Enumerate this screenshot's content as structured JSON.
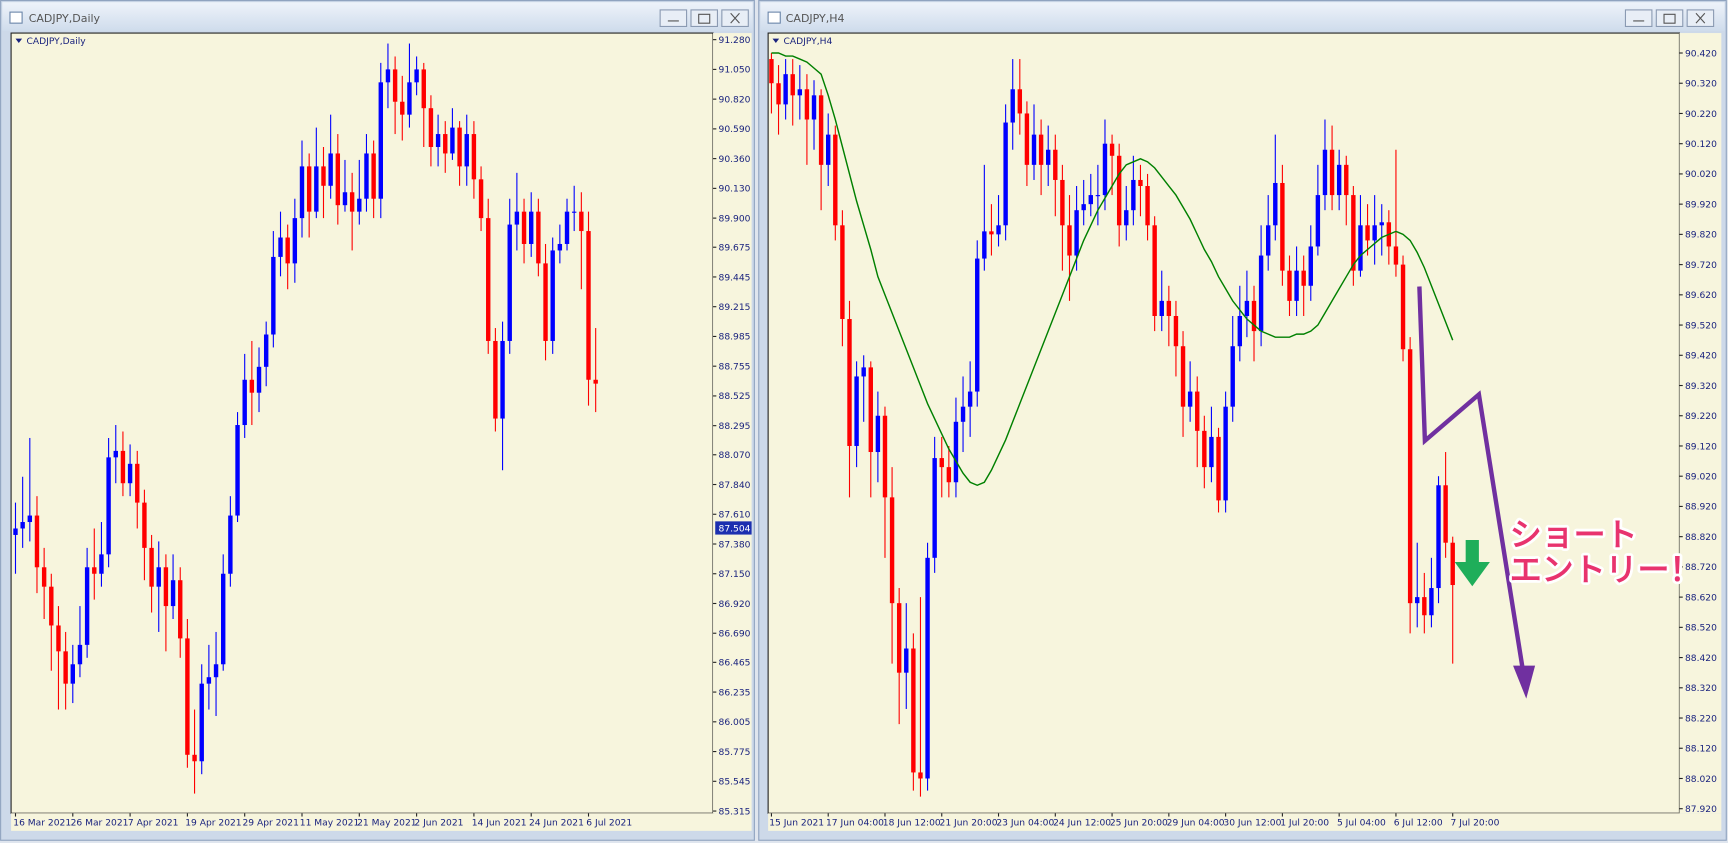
{
  "chart_data": [
    {
      "type": "candlestick",
      "window_title": "CADJPY,Daily",
      "label": "CADJPY,Daily",
      "up_color": "#0000ff",
      "down_color": "#ff0000",
      "ylim": [
        85.298,
        91.331
      ],
      "yticks": [
        {
          "value": 91.28,
          "label": "91.280"
        },
        {
          "value": 91.05,
          "label": "91.050"
        },
        {
          "value": 90.82,
          "label": "90.820"
        },
        {
          "value": 90.59,
          "label": "90.590"
        },
        {
          "value": 90.36,
          "label": "90.360"
        },
        {
          "value": 90.13,
          "label": "90.130"
        },
        {
          "value": 89.9,
          "label": "89.900"
        },
        89.675,
        89.445,
        89.215,
        88.985,
        88.755,
        88.525,
        88.295,
        {
          "value": 88.07,
          "label": "88.070"
        },
        {
          "value": 87.84,
          "label": "87.840"
        },
        {
          "value": 87.61,
          "label": "87.610"
        },
        {
          "value": 87.38,
          "label": "87.380"
        },
        {
          "value": 87.15,
          "label": "87.150"
        },
        {
          "value": 86.92,
          "label": "86.920"
        },
        {
          "value": 86.69,
          "label": "86.690"
        },
        86.465,
        86.235,
        86.005,
        85.775,
        85.545,
        85.315
      ],
      "bid": 87.504,
      "categories": [
        "16 Mar 2021",
        null,
        null,
        null,
        null,
        null,
        null,
        null,
        "26 Mar 2021",
        null,
        null,
        null,
        null,
        null,
        null,
        null,
        "7 Apr 2021",
        null,
        null,
        null,
        null,
        null,
        null,
        null,
        "19 Apr 2021",
        null,
        null,
        null,
        null,
        null,
        null,
        null,
        "29 Apr 2021",
        null,
        null,
        null,
        null,
        null,
        null,
        null,
        "11 May 2021",
        null,
        null,
        null,
        null,
        null,
        null,
        null,
        "21 May 2021",
        null,
        null,
        null,
        null,
        null,
        null,
        null,
        "2 Jun 2021",
        null,
        null,
        null,
        null,
        null,
        null,
        null,
        "14 Jun 2021",
        null,
        null,
        null,
        null,
        null,
        null,
        null,
        "24 Jun 2021",
        null,
        null,
        null,
        null,
        null,
        null,
        null,
        "6 Jul 2021",
        null
      ],
      "open": [
        87.45,
        87.5,
        87.55,
        87.6,
        87.2,
        87.05,
        86.75,
        86.55,
        86.3,
        86.45,
        86.6,
        87.2,
        87.15,
        87.3,
        88.05,
        88.1,
        87.85,
        88.0,
        87.7,
        87.35,
        87.05,
        87.2,
        86.9,
        87.1,
        86.65,
        85.75,
        85.7,
        86.3,
        86.35,
        86.45,
        87.15,
        87.6,
        88.3,
        88.65,
        88.55,
        88.75,
        89.0,
        89.6,
        89.75,
        89.55,
        89.9,
        90.3,
        89.95,
        90.3,
        90.15,
        90.4,
        90.0,
        90.1,
        89.95,
        90.05,
        90.4,
        90.05,
        90.95,
        91.05,
        90.8,
        90.7,
        90.95,
        91.05,
        90.75,
        90.45,
        90.55,
        90.4,
        90.6,
        90.3,
        90.55,
        90.2,
        89.9,
        88.95,
        88.35,
        88.95,
        89.85,
        89.95,
        89.7,
        89.95,
        89.55,
        88.95,
        89.65,
        89.7,
        89.95,
        89.95,
        89.8,
        88.65
      ],
      "high": [
        87.7,
        87.9,
        88.2,
        87.75,
        87.35,
        87.15,
        86.9,
        86.7,
        86.6,
        86.9,
        87.35,
        87.5,
        87.55,
        88.2,
        88.3,
        88.25,
        88.15,
        88.1,
        87.8,
        87.45,
        87.4,
        87.3,
        87.3,
        87.2,
        86.8,
        86.1,
        86.45,
        86.6,
        86.7,
        87.3,
        87.75,
        88.4,
        88.85,
        88.95,
        88.9,
        89.1,
        89.8,
        89.95,
        89.85,
        90.05,
        90.5,
        90.4,
        90.6,
        90.45,
        90.7,
        90.55,
        90.35,
        90.25,
        90.35,
        90.55,
        90.5,
        91.1,
        91.25,
        91.15,
        91.0,
        91.25,
        91.15,
        91.1,
        90.85,
        90.7,
        90.65,
        90.75,
        90.65,
        90.7,
        90.65,
        90.3,
        90.05,
        89.05,
        89.1,
        90.05,
        90.25,
        90.05,
        90.1,
        90.05,
        89.7,
        89.75,
        89.85,
        90.05,
        90.15,
        90.1,
        89.95,
        89.05
      ],
      "low": [
        87.15,
        87.35,
        87.4,
        87.0,
        86.8,
        86.4,
        86.1,
        86.1,
        86.15,
        86.35,
        86.5,
        86.95,
        87.05,
        87.2,
        87.85,
        87.75,
        87.75,
        87.5,
        87.1,
        86.85,
        86.7,
        86.55,
        86.8,
        86.5,
        85.65,
        85.45,
        85.6,
        86.1,
        86.05,
        86.4,
        87.05,
        87.55,
        88.2,
        88.3,
        88.4,
        88.6,
        88.9,
        89.45,
        89.35,
        89.4,
        89.75,
        89.75,
        89.9,
        89.9,
        90.05,
        89.85,
        89.95,
        89.65,
        89.85,
        89.95,
        89.9,
        89.9,
        90.75,
        90.55,
        90.5,
        90.6,
        90.85,
        90.45,
        90.3,
        90.3,
        90.25,
        90.35,
        90.15,
        90.15,
        90.05,
        89.8,
        88.85,
        88.25,
        87.95,
        88.85,
        89.65,
        89.55,
        89.6,
        89.45,
        88.8,
        88.85,
        89.55,
        89.65,
        89.8,
        89.35,
        88.45,
        88.4
      ],
      "close": [
        87.5,
        87.55,
        87.6,
        87.2,
        87.05,
        86.75,
        86.55,
        86.3,
        86.45,
        86.6,
        87.2,
        87.15,
        87.3,
        88.05,
        88.1,
        87.85,
        88.0,
        87.7,
        87.35,
        87.05,
        87.2,
        86.9,
        87.1,
        86.65,
        85.75,
        85.7,
        86.3,
        86.35,
        86.45,
        87.15,
        87.6,
        88.3,
        88.65,
        88.55,
        88.75,
        89.0,
        89.6,
        89.75,
        89.55,
        89.9,
        90.3,
        89.95,
        90.3,
        90.15,
        90.4,
        90.0,
        90.1,
        89.95,
        90.05,
        90.4,
        90.05,
        90.95,
        91.05,
        90.8,
        90.7,
        90.95,
        91.05,
        90.75,
        90.45,
        90.55,
        90.4,
        90.6,
        90.3,
        90.55,
        90.2,
        89.9,
        88.95,
        88.35,
        88.95,
        89.85,
        89.95,
        89.7,
        89.95,
        89.55,
        88.95,
        89.65,
        89.7,
        89.95,
        89.95,
        89.8,
        88.65,
        88.62
      ]
    },
    {
      "type": "candlestick",
      "window_title": "CADJPY,H4",
      "label": "CADJPY,H4",
      "up_color": "#0000ff",
      "down_color": "#ff0000",
      "ylim": [
        87.905,
        90.486
      ],
      "yticks": [
        {
          "value": 90.42,
          "label": "90.420"
        },
        {
          "value": 90.32,
          "label": "90.320"
        },
        {
          "value": 90.22,
          "label": "90.220"
        },
        {
          "value": 90.12,
          "label": "90.120"
        },
        {
          "value": 90.02,
          "label": "90.020"
        },
        {
          "value": 89.92,
          "label": "89.920"
        },
        {
          "value": 89.82,
          "label": "89.820"
        },
        {
          "value": 89.72,
          "label": "89.720"
        },
        {
          "value": 89.62,
          "label": "89.620"
        },
        {
          "value": 89.52,
          "label": "89.520"
        },
        {
          "value": 89.42,
          "label": "89.420"
        },
        {
          "value": 89.32,
          "label": "89.320"
        },
        {
          "value": 89.22,
          "label": "89.220"
        },
        {
          "value": 89.12,
          "label": "89.120"
        },
        {
          "value": 89.02,
          "label": "89.020"
        },
        {
          "value": 88.92,
          "label": "88.920"
        },
        {
          "value": 88.82,
          "label": "88.820"
        },
        {
          "value": 88.72,
          "label": "88.720"
        },
        {
          "value": 88.62,
          "label": "88.620"
        },
        {
          "value": 88.52,
          "label": "88.520"
        },
        {
          "value": 88.42,
          "label": "88.420"
        },
        {
          "value": 88.32,
          "label": "88.320"
        },
        {
          "value": 88.22,
          "label": "88.220"
        },
        {
          "value": 88.12,
          "label": "88.120"
        },
        {
          "value": 88.02,
          "label": "88.020"
        },
        {
          "value": 87.92,
          "label": "87.920"
        }
      ],
      "categories": [
        "15 Jun 2021",
        null,
        null,
        null,
        null,
        null,
        null,
        null,
        "17 Jun 04:00",
        null,
        null,
        null,
        null,
        null,
        null,
        null,
        "18 Jun 12:00",
        null,
        null,
        null,
        null,
        null,
        null,
        null,
        "21 Jun 20:00",
        null,
        null,
        null,
        null,
        null,
        null,
        null,
        "23 Jun 04:00",
        null,
        null,
        null,
        null,
        null,
        null,
        null,
        "24 Jun 12:00",
        null,
        null,
        null,
        null,
        null,
        null,
        null,
        "25 Jun 20:00",
        null,
        null,
        null,
        null,
        null,
        null,
        null,
        "29 Jun 04:00",
        null,
        null,
        null,
        null,
        null,
        null,
        null,
        "30 Jun 12:00",
        null,
        null,
        null,
        null,
        null,
        null,
        null,
        "1 Jul 20:00",
        null,
        null,
        null,
        null,
        null,
        null,
        null,
        "5 Jul 04:00",
        null,
        null,
        null,
        null,
        null,
        null,
        null,
        "6 Jul 12:00",
        null,
        null,
        null,
        null,
        null,
        null,
        null,
        "7 Jul 20:00"
      ],
      "open": [
        90.4,
        90.32,
        90.25,
        90.35,
        90.28,
        90.3,
        90.2,
        90.28,
        90.05,
        90.15,
        89.85,
        89.54,
        89.12,
        89.35,
        89.38,
        89.1,
        89.22,
        88.95,
        88.6,
        88.37,
        88.45,
        88.04,
        88.02,
        88.75,
        89.08,
        89.05,
        89.0,
        89.2,
        89.25,
        89.3,
        89.74,
        89.83,
        89.82,
        89.85,
        90.19,
        90.3,
        90.22,
        90.05,
        90.15,
        90.05,
        90.1,
        90.0,
        89.85,
        89.75,
        89.9,
        89.92,
        89.95,
        89.95,
        90.12,
        90.08,
        89.85,
        89.9,
        90.0,
        89.98,
        89.85,
        89.55,
        89.6,
        89.55,
        89.45,
        89.25,
        89.3,
        89.17,
        89.05,
        89.15,
        88.94,
        89.25,
        89.45,
        89.55,
        89.6,
        89.5,
        89.75,
        89.85,
        89.99,
        89.7,
        89.6,
        89.7,
        89.65,
        89.78,
        89.95,
        90.1,
        89.95,
        90.05,
        89.95,
        89.7,
        89.85,
        89.8,
        89.85,
        89.86,
        89.78,
        89.72,
        89.44,
        88.6,
        88.62,
        88.56,
        88.65,
        88.99,
        88.8
      ],
      "high": [
        90.42,
        90.38,
        90.4,
        90.4,
        90.38,
        90.35,
        90.33,
        90.3,
        90.22,
        90.18,
        89.9,
        89.6,
        89.4,
        89.42,
        89.4,
        89.3,
        89.25,
        89.05,
        88.65,
        88.6,
        88.5,
        88.62,
        88.8,
        89.15,
        89.15,
        89.12,
        89.28,
        89.35,
        89.4,
        89.8,
        90.05,
        89.92,
        89.95,
        90.25,
        90.4,
        90.4,
        90.26,
        90.25,
        90.2,
        90.18,
        90.15,
        90.05,
        89.95,
        89.98,
        90.0,
        90.02,
        90.05,
        90.2,
        90.15,
        90.12,
        89.98,
        90.08,
        90.05,
        90.02,
        89.88,
        89.7,
        89.65,
        89.6,
        89.5,
        89.4,
        89.35,
        89.22,
        89.25,
        89.18,
        89.3,
        89.55,
        89.65,
        89.7,
        89.65,
        89.85,
        89.95,
        90.15,
        90.05,
        89.75,
        89.78,
        89.75,
        89.85,
        90.05,
        90.2,
        90.18,
        90.1,
        90.08,
        89.98,
        89.95,
        89.92,
        89.95,
        89.92,
        89.9,
        90.1,
        89.75,
        89.48,
        88.8,
        88.7,
        88.75,
        89.02,
        89.1,
        88.82
      ],
      "low": [
        90.22,
        90.15,
        90.2,
        90.18,
        90.2,
        90.05,
        90.1,
        89.9,
        89.98,
        89.8,
        89.45,
        88.95,
        89.05,
        89.2,
        88.95,
        89.0,
        88.75,
        88.4,
        88.2,
        88.25,
        87.98,
        87.96,
        87.98,
        88.7,
        88.95,
        88.95,
        88.95,
        89.1,
        89.15,
        89.25,
        89.7,
        89.75,
        89.78,
        89.8,
        90.1,
        90.15,
        89.98,
        90.0,
        89.95,
        89.98,
        89.88,
        89.7,
        89.6,
        89.7,
        89.85,
        89.88,
        89.85,
        89.9,
        89.95,
        89.78,
        89.8,
        89.85,
        89.88,
        89.8,
        89.5,
        89.5,
        89.45,
        89.35,
        89.15,
        89.2,
        89.05,
        88.98,
        89.0,
        88.9,
        88.9,
        89.2,
        89.4,
        89.48,
        89.4,
        89.45,
        89.7,
        89.8,
        89.65,
        89.55,
        89.55,
        89.55,
        89.6,
        89.75,
        89.9,
        89.9,
        89.9,
        89.85,
        89.65,
        89.68,
        89.75,
        89.72,
        89.75,
        89.72,
        89.68,
        89.4,
        88.5,
        88.52,
        88.5,
        88.52,
        88.6,
        88.75,
        88.4
      ],
      "close": [
        90.32,
        90.25,
        90.35,
        90.28,
        90.3,
        90.2,
        90.28,
        90.05,
        90.15,
        89.85,
        89.54,
        89.12,
        89.35,
        89.38,
        89.1,
        89.22,
        88.95,
        88.6,
        88.37,
        88.45,
        88.04,
        88.02,
        88.75,
        89.08,
        89.05,
        89.0,
        89.2,
        89.25,
        89.3,
        89.74,
        89.83,
        89.82,
        89.85,
        90.19,
        90.3,
        90.22,
        90.05,
        90.15,
        90.05,
        90.1,
        90.0,
        89.85,
        89.75,
        89.9,
        89.92,
        89.95,
        89.95,
        90.12,
        90.08,
        89.85,
        89.9,
        90.0,
        89.98,
        89.85,
        89.55,
        89.6,
        89.55,
        89.45,
        89.25,
        89.3,
        89.17,
        89.05,
        89.15,
        88.94,
        89.25,
        89.45,
        89.55,
        89.6,
        89.5,
        89.75,
        89.85,
        89.99,
        89.7,
        89.6,
        89.7,
        89.65,
        89.78,
        89.95,
        90.1,
        89.95,
        90.05,
        89.95,
        89.7,
        89.85,
        89.8,
        89.85,
        89.86,
        89.78,
        89.72,
        89.44,
        88.6,
        88.62,
        88.56,
        88.65,
        88.99,
        88.8,
        88.66
      ],
      "ma": {
        "color": "#008000",
        "values": [
          90.42,
          90.42,
          90.41,
          90.41,
          90.4,
          90.39,
          90.37,
          90.35,
          90.28,
          90.2,
          90.11,
          90.02,
          89.93,
          89.85,
          89.77,
          89.68,
          89.62,
          89.56,
          89.5,
          89.44,
          89.38,
          89.32,
          89.26,
          89.21,
          89.16,
          89.11,
          89.07,
          89.03,
          89.0,
          88.99,
          89.0,
          89.04,
          89.09,
          89.14,
          89.2,
          89.26,
          89.32,
          89.38,
          89.44,
          89.5,
          89.56,
          89.62,
          89.68,
          89.74,
          89.8,
          89.85,
          89.9,
          89.94,
          89.98,
          90.02,
          90.05,
          90.06,
          90.07,
          90.06,
          90.04,
          90.01,
          89.98,
          89.95,
          89.91,
          89.87,
          89.82,
          89.77,
          89.73,
          89.68,
          89.64,
          89.6,
          89.57,
          89.54,
          89.52,
          89.5,
          89.49,
          89.48,
          89.48,
          89.48,
          89.49,
          89.49,
          89.5,
          89.52,
          89.56,
          89.6,
          89.64,
          89.68,
          89.72,
          89.75,
          89.77,
          89.79,
          89.81,
          89.82,
          89.83,
          89.82,
          89.8,
          89.76,
          89.71,
          89.65,
          89.59,
          89.53,
          89.47
        ]
      },
      "annotations": [
        "ショート",
        "エントリー！"
      ]
    }
  ]
}
